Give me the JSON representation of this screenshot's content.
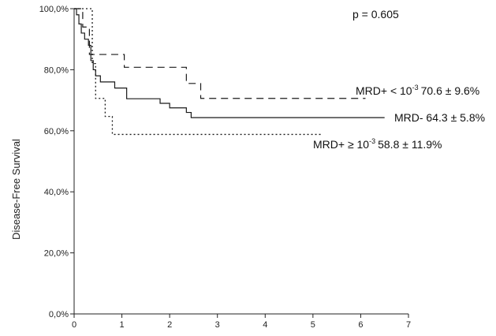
{
  "chart_data": {
    "type": "line",
    "step": true,
    "ylabel": "Disease-Free Survival",
    "xlabel": "",
    "xlim": [
      0,
      7
    ],
    "ylim": [
      0,
      100
    ],
    "x_ticks": [
      0,
      1,
      2,
      3,
      4,
      5,
      6,
      7
    ],
    "y_ticks": [
      {
        "value": 0,
        "label": "0,0%"
      },
      {
        "value": 20,
        "label": "20,0%"
      },
      {
        "value": 40,
        "label": "40,0%"
      },
      {
        "value": 60,
        "label": "60,0%"
      },
      {
        "value": 80,
        "label": "80,0%"
      },
      {
        "value": 100,
        "label": "100,0%"
      }
    ],
    "grid": false,
    "annotation": "p = 0.605",
    "series": [
      {
        "name": "MRD- 64.3 ± 5.8%",
        "style": "solid",
        "color": "#1a1a1a",
        "points": [
          [
            0,
            100
          ],
          [
            0.05,
            98
          ],
          [
            0.1,
            95
          ],
          [
            0.15,
            92
          ],
          [
            0.22,
            90
          ],
          [
            0.3,
            88
          ],
          [
            0.35,
            83
          ],
          [
            0.4,
            80
          ],
          [
            0.45,
            78
          ],
          [
            0.55,
            76
          ],
          [
            0.85,
            74
          ],
          [
            1.1,
            70.5
          ],
          [
            1.8,
            69
          ],
          [
            2.0,
            67.5
          ],
          [
            2.35,
            66
          ],
          [
            2.45,
            64.3
          ],
          [
            6.5,
            64.3
          ]
        ]
      },
      {
        "name": "MRD+ < 10-3 70.6 ± 9.6%",
        "label_main": "MRD+ < 10",
        "label_sup": "-3",
        "label_rest": "70.6 ± 9.6%",
        "style": "dashed",
        "color": "#1a1a1a",
        "points": [
          [
            0,
            100
          ],
          [
            0.18,
            94
          ],
          [
            0.32,
            85
          ],
          [
            1.05,
            80.8
          ],
          [
            2.35,
            75.5
          ],
          [
            2.65,
            70.6
          ],
          [
            6.1,
            70.6
          ]
        ]
      },
      {
        "name": "MRD+ ≥ 10-3 58.8 ± 11.9%",
        "label_main": "MRD+ ≥ 10",
        "label_sup": "-3",
        "label_rest": "58.8 ± 11.9%",
        "style": "dotted",
        "color": "#1a1a1a",
        "points": [
          [
            0,
            100
          ],
          [
            0.3,
            100
          ],
          [
            0.38,
            82
          ],
          [
            0.45,
            70.6
          ],
          [
            0.65,
            64.7
          ],
          [
            0.8,
            58.8
          ],
          [
            5.2,
            58.8
          ]
        ]
      }
    ]
  }
}
